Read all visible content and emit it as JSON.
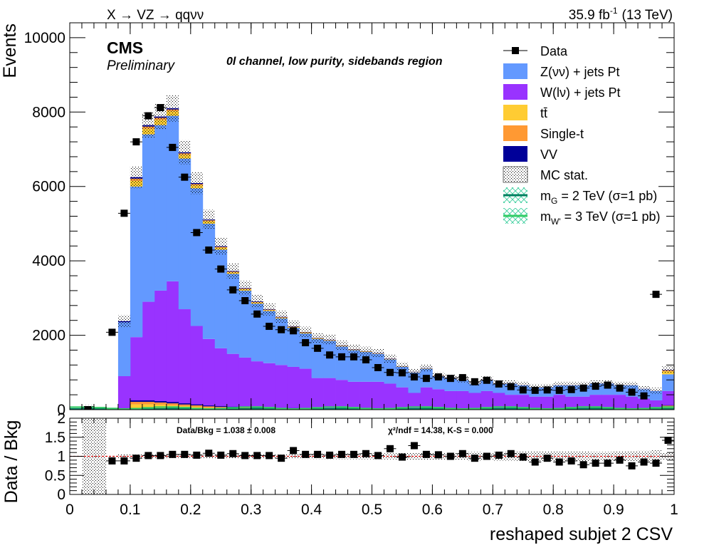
{
  "header": {
    "process": "X → VZ → qqνν",
    "lumi": "35.9 fb",
    "lumi_sup": "-1",
    "energy": "(13 TeV)",
    "cms": "CMS",
    "preliminary": "Preliminary",
    "region": "0l channel, low purity, sidebands region"
  },
  "ratio_text": {
    "data_bkg": "Data/Bkg = 1.038 ± 0.008",
    "chi2": "χ²/ndf = 14.38,   K-S = 0.000"
  },
  "colors": {
    "znn": "#6399ff",
    "wln": "#9933ff",
    "ttbar": "#ffcc33",
    "single_t": "#ff9933",
    "vv": "#000099",
    "signal_g": "#007f5f",
    "signal_w": "#33cc66",
    "ratio_line": "#cc0000"
  },
  "chart_data": [
    {
      "type": "bar",
      "stacked": true,
      "xlabel": "",
      "ylabel": "Events",
      "xlim": [
        0,
        1
      ],
      "ylim": [
        0,
        10400
      ],
      "x_bin_edges": [
        0,
        0.02,
        0.04,
        0.06,
        0.08,
        0.1,
        0.12,
        0.14,
        0.16,
        0.18,
        0.2,
        0.22,
        0.24,
        0.26,
        0.28,
        0.3,
        0.32,
        0.34,
        0.36,
        0.38,
        0.4,
        0.42,
        0.44,
        0.46,
        0.48,
        0.5,
        0.52,
        0.54,
        0.56,
        0.58,
        0.6,
        0.62,
        0.64,
        0.66,
        0.68,
        0.7,
        0.72,
        0.74,
        0.76,
        0.78,
        0.8,
        0.82,
        0.84,
        0.86,
        0.88,
        0.9,
        0.92,
        0.94,
        0.96,
        0.98,
        1.0
      ],
      "y_ticks": [
        0,
        2000,
        4000,
        6000,
        8000,
        10000
      ],
      "x_ticks": [
        0,
        0.1,
        0.2,
        0.3,
        0.4,
        0.5,
        0.6,
        0.7,
        0.8,
        0.9,
        1
      ],
      "legend": {
        "placement": "top-right"
      },
      "series": [
        {
          "name": "W(lν) + jets Pt",
          "color_key": "wln",
          "values": [
            0,
            0,
            0,
            0,
            900,
            1950,
            2900,
            3200,
            3450,
            2700,
            2250,
            1900,
            1650,
            1500,
            1400,
            1300,
            1250,
            1200,
            1150,
            1100,
            850,
            850,
            800,
            750,
            750,
            750,
            700,
            600,
            450,
            600,
            550,
            500,
            500,
            450,
            500,
            450,
            400,
            400,
            350,
            350,
            400,
            350,
            350,
            400,
            400,
            400,
            350,
            300,
            250,
            500
          ]
        },
        {
          "name": "Z(νν) + jets Pt",
          "color_key": "znn",
          "values": [
            0,
            0,
            0,
            0,
            1450,
            4050,
            4500,
            4450,
            4450,
            4050,
            3700,
            3100,
            2650,
            2150,
            1800,
            1550,
            1400,
            1250,
            1050,
            950,
            1050,
            1000,
            900,
            850,
            800,
            750,
            650,
            550,
            550,
            500,
            350,
            350,
            300,
            250,
            300,
            250,
            300,
            250,
            250,
            250,
            250,
            300,
            300,
            300,
            300,
            250,
            300,
            250,
            250,
            450
          ]
        },
        {
          "name": "tt̄",
          "color_key": "ttbar",
          "values": [
            0,
            0,
            0,
            0,
            0,
            150,
            150,
            140,
            120,
            100,
            80,
            60,
            50,
            40,
            35,
            30,
            25,
            22,
            20,
            18,
            15,
            14,
            13,
            12,
            11,
            10,
            10,
            9,
            8,
            8,
            7,
            7,
            6,
            6,
            5,
            5,
            5,
            4,
            4,
            4,
            4,
            4,
            3,
            3,
            3,
            3,
            3,
            3,
            3,
            80
          ]
        },
        {
          "name": "Single-t",
          "color_key": "single_t",
          "values": [
            0,
            0,
            0,
            0,
            0,
            60,
            60,
            55,
            50,
            40,
            35,
            30,
            25,
            20,
            18,
            16,
            14,
            12,
            10,
            10,
            8,
            8,
            7,
            7,
            6,
            6,
            6,
            5,
            5,
            5,
            4,
            4,
            4,
            4,
            3,
            3,
            3,
            3,
            3,
            3,
            3,
            3,
            2,
            2,
            2,
            2,
            2,
            2,
            2,
            30
          ]
        },
        {
          "name": "VV",
          "color_key": "vv",
          "values": [
            0,
            0,
            0,
            0,
            30,
            40,
            40,
            35,
            35,
            30,
            25,
            22,
            20,
            18,
            16,
            14,
            13,
            12,
            11,
            10,
            9,
            9,
            8,
            8,
            7,
            7,
            7,
            6,
            6,
            6,
            5,
            5,
            5,
            5,
            5,
            4,
            4,
            4,
            4,
            4,
            4,
            4,
            4,
            4,
            4,
            4,
            4,
            4,
            4,
            10
          ]
        }
      ],
      "data_points": {
        "name": "Data",
        "values": [
          0,
          0,
          0,
          2080,
          5280,
          7200,
          7900,
          8120,
          7050,
          6250,
          4760,
          4290,
          3780,
          3220,
          2930,
          2570,
          2240,
          2150,
          2120,
          1800,
          1650,
          1470,
          1420,
          1420,
          1340,
          1130,
          1000,
          990,
          880,
          840,
          880,
          840,
          860,
          750,
          790,
          690,
          620,
          530,
          520,
          530,
          520,
          540,
          580,
          630,
          660,
          580,
          470,
          370,
          3100,
          0
        ]
      },
      "mc_stat": {
        "name": "MC stat."
      },
      "signals": [
        {
          "name": "m_G = 2 TeV (σ=1 pb)",
          "label_main": "m",
          "label_sub": "G",
          "label_rest": " = 2 TeV (σ=1 pb)",
          "color_key": "signal_g"
        },
        {
          "name": "m_W' = 3 TeV (σ=1 pb)",
          "label_main": "m",
          "label_sub": "W'",
          "label_rest": " = 3 TeV (σ=1 pb)",
          "color_key": "signal_w"
        }
      ]
    },
    {
      "type": "scatter",
      "xlabel": "reshaped subjet 2 CSV",
      "ylabel": "Data / Bkg",
      "xlim": [
        0,
        1
      ],
      "ylim": [
        0,
        2
      ],
      "y_ticks": [
        0,
        0.5,
        1,
        1.5,
        2
      ],
      "y_tick_labels": [
        "0",
        "0.5",
        "1",
        "1.5",
        "2"
      ],
      "x_ticks": [
        0,
        0.1,
        0.2,
        0.3,
        0.4,
        0.5,
        0.6,
        0.7,
        0.8,
        0.9,
        1
      ],
      "x_tick_labels": [
        "0",
        "0.1",
        "0.2",
        "0.3",
        "0.4",
        "0.5",
        "0.6",
        "0.7",
        "0.8",
        "0.9",
        "1"
      ],
      "reference_line": 1,
      "values": [
        null,
        null,
        null,
        0.88,
        0.88,
        0.95,
        1.02,
        1.02,
        1.05,
        1.05,
        1.03,
        1.08,
        1.03,
        1.07,
        1.02,
        1.02,
        1.02,
        0.95,
        1.15,
        1.05,
        1.05,
        1.03,
        1.05,
        1.05,
        1.07,
        1.02,
        1.2,
        0.98,
        1.28,
        1.05,
        1.04,
        1.0,
        1.07,
        0.95,
        1.0,
        1.03,
        1.07,
        0.98,
        0.85,
        0.95,
        0.85,
        0.88,
        0.78,
        0.82,
        0.82,
        0.9,
        0.75,
        0.85,
        0.82,
        1.42
      ]
    }
  ]
}
